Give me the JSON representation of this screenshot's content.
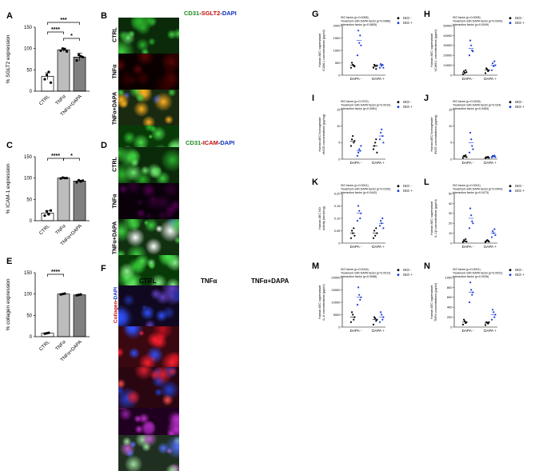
{
  "colors": {
    "ctrl_bar": "#ffffff",
    "tnf_bar": "#bdbdbd",
    "dapa_bar": "#808080",
    "iso_minus": "#000000",
    "iso_plus": "#1f3fd6",
    "green": "#1e8a1e",
    "red": "#c01010",
    "magenta": "#a020b0",
    "blue": "#1030c0"
  },
  "bar_panels": [
    {
      "id": "A",
      "ylabel": "% SGLT2 expression",
      "yticks": [
        "0",
        "50",
        "100",
        "150"
      ],
      "ylim": [
        0,
        150
      ],
      "categories": [
        "CTRL",
        "TNFα",
        "TNFα+DAPA"
      ],
      "values": [
        35,
        97,
        80
      ],
      "errors": [
        8,
        4,
        9
      ],
      "points": [
        [
          28,
          38,
          45,
          20
        ],
        [
          95,
          100,
          98,
          93
        ],
        [
          72,
          85,
          82,
          80
        ]
      ],
      "sig": [
        "***",
        "****",
        "*"
      ]
    },
    {
      "id": "C",
      "ylabel": "% ICAM-1 expression",
      "yticks": [
        "0",
        "50",
        "100",
        "150"
      ],
      "ylim": [
        0,
        150
      ],
      "categories": [
        "CTRL",
        "TNFα",
        "TNFα+DAPA"
      ],
      "values": [
        18,
        100,
        93
      ],
      "errors": [
        5,
        1,
        2
      ],
      "points": [
        [
          12,
          22,
          15,
          24
        ],
        [
          99,
          101,
          100,
          100
        ],
        [
          90,
          95,
          92,
          94
        ]
      ],
      "sig": [
        "****",
        "*"
      ]
    },
    {
      "id": "E",
      "ylabel": "% collagen expression",
      "yticks": [
        "0",
        "50",
        "100",
        "150"
      ],
      "ylim": [
        0,
        150
      ],
      "categories": [
        "CTRL",
        "TNFα",
        "TNFα+DAPA"
      ],
      "values": [
        8,
        100,
        98
      ],
      "errors": [
        1,
        1,
        1
      ],
      "points": [
        [
          7,
          8,
          9
        ],
        [
          99,
          100,
          101
        ],
        [
          97,
          98,
          99
        ]
      ],
      "sig": [
        "****"
      ]
    }
  ],
  "micrographs": {
    "B": {
      "id": "B",
      "title_parts": [
        "CD31",
        "-",
        "SGLT2",
        "-",
        "DAPI"
      ],
      "rows": [
        "CTRL",
        "TNFα",
        "TNFα+DAPA"
      ]
    },
    "D": {
      "id": "D",
      "title_parts": [
        "CD31",
        "-",
        "ICAM",
        "-",
        "DAPI"
      ],
      "rows": [
        "CTRL",
        "TNFα",
        "TNFα+DAPA"
      ]
    },
    "F": {
      "id": "F",
      "ylabel_parts": [
        "Collagen",
        "-",
        "DAPI"
      ],
      "columns": [
        "CTRL",
        "TNFα",
        "TNFα+DAPA"
      ]
    }
  },
  "scatter_panels": [
    {
      "id": "G",
      "ylabel": "Human AEC supernatant ICAM-1 concentrations (pg/ml)",
      "stats": [
        "ISO factor (p=0.0058)",
        "Treatment with DAPA factor (p=0.0486)",
        "Interaction factor (p=0.0805)"
      ],
      "yticks": [
        "0",
        "500",
        "1000",
        "1500",
        "2000"
      ],
      "ylim": [
        0,
        2000
      ],
      "groups": [
        "DAPA -",
        "DAPA +"
      ],
      "legend": [
        "ISO -",
        "ISO +"
      ],
      "means": [
        [
          400,
          1400
        ],
        [
          350,
          400
        ]
      ],
      "points": [
        [
          [
            300,
            500,
            420,
            380,
            350
          ],
          [
            800,
            1800,
            1300,
            1600,
            1200
          ]
        ],
        [
          [
            300,
            420,
            380,
            250,
            390
          ],
          [
            300,
            450,
            380,
            420,
            300
          ]
        ]
      ]
    },
    {
      "id": "H",
      "ylabel": "Human AEC supernatant VCAM-1 concentrations (pg/ml)",
      "stats": [
        "ISO factor (p=0.0005)",
        "Treatment with DAPA factor (p=0.0429)",
        "Interaction factor (p=0.0049)"
      ],
      "yticks": [
        "0",
        "10000",
        "20000",
        "30000",
        "40000",
        "50000"
      ],
      "ylim": [
        0,
        50000
      ],
      "groups": [
        "DAPA -",
        "DAPA +"
      ],
      "legend": [
        "ISO -",
        "ISO +"
      ],
      "means": [
        [
          3000,
          27000
        ],
        [
          5000,
          10000
        ]
      ],
      "points": [
        [
          [
            1000,
            4000,
            2000,
            5000,
            3000
          ],
          [
            20000,
            35000,
            30000,
            25000,
            24000
          ]
        ],
        [
          [
            2000,
            7000,
            6000,
            4000,
            5000
          ],
          [
            5000,
            12000,
            9000,
            14000,
            10000
          ]
        ]
      ]
    },
    {
      "id": "I",
      "ylabel": "Human AEC homogenate eNOS concentrations (pg/mg)",
      "stats": [
        "ISO factor (p=0.0702)",
        "Treatment with DAPA factor (p=0.0010)",
        "Interaction factor (p=0.0081)"
      ],
      "yticks": [
        "0",
        "5",
        "10",
        "15"
      ],
      "ylim": [
        0,
        15
      ],
      "groups": [
        "DAPA -",
        "DAPA +"
      ],
      "legend": [
        "ISO -",
        "ISO +"
      ],
      "means": [
        [
          5.5,
          2.5
        ],
        [
          4,
          7
        ]
      ],
      "points": [
        [
          [
            4,
            6,
            7,
            5,
            5.5
          ],
          [
            1,
            2,
            3,
            2.5,
            4
          ]
        ],
        [
          [
            3,
            4,
            5,
            6,
            2
          ],
          [
            6,
            8,
            9,
            7,
            5
          ]
        ]
      ]
    },
    {
      "id": "J",
      "ylabel": "Human AEC homogenate iNOS concentrations (pg/mg)",
      "stats": [
        "ISO factor (p=0.0228)",
        "Treatment with DAPA factor (p=0.034)",
        "Interaction factor (p=0.0483)"
      ],
      "yticks": [
        "0",
        "5",
        "10",
        "15"
      ],
      "ylim": [
        0,
        15
      ],
      "groups": [
        "DAPA -",
        "DAPA +"
      ],
      "legend": [
        "ISO -",
        "ISO +"
      ],
      "means": [
        [
          0.8,
          5
        ],
        [
          0.5,
          0.8
        ]
      ],
      "points": [
        [
          [
            0.4,
            1,
            0.8,
            1.2,
            0.6
          ],
          [
            2,
            8,
            6,
            4,
            3
          ]
        ],
        [
          [
            0.3,
            0.6,
            0.5,
            0.7,
            0.4
          ],
          [
            0.5,
            1,
            0.8,
            1.1,
            0.6
          ]
        ]
      ]
    },
    {
      "id": "K",
      "ylabel": "Human AEC NO activity (nmol/mg)",
      "stats": [
        "ISO factor (p=0.0001)",
        "Treatment with DAPA factor (p=0.0109)",
        "Interaction factor (p=0.0442)"
      ],
      "yticks": [
        "0",
        "0.05",
        "0.10",
        "0.15",
        "0.20"
      ],
      "ylim": [
        0,
        0.2
      ],
      "groups": [
        "DAPA -",
        "DAPA +"
      ],
      "legend": [
        "ISO -",
        "ISO +"
      ],
      "means": [
        [
          0.04,
          0.12
        ],
        [
          0.04,
          0.08
        ]
      ],
      "points": [
        [
          [
            0.02,
            0.05,
            0.04,
            0.06,
            0.03
          ],
          [
            0.09,
            0.15,
            0.13,
            0.1,
            0.12
          ]
        ],
        [
          [
            0.02,
            0.05,
            0.03,
            0.06,
            0.04
          ],
          [
            0.07,
            0.09,
            0.08,
            0.1,
            0.06
          ]
        ]
      ]
    },
    {
      "id": "L",
      "ylabel": "Human AEC supernatant IL-1β concentrations (pg/ml)",
      "stats": [
        "ISO factor (p=0.0001)",
        "Treatment with DAPA factor (p=0.0404)",
        "Interaction factor (p=0.0473)"
      ],
      "yticks": [
        "0",
        "10",
        "20",
        "30",
        "40",
        "50"
      ],
      "ylim": [
        0,
        50
      ],
      "groups": [
        "DAPA -",
        "DAPA +"
      ],
      "legend": [
        "ISO -",
        "ISO +"
      ],
      "means": [
        [
          2,
          25
        ],
        [
          2,
          10
        ]
      ],
      "points": [
        [
          [
            1,
            3,
            2,
            4,
            1.5
          ],
          [
            15,
            35,
            28,
            22,
            20
          ]
        ],
        [
          [
            1,
            2,
            3,
            2.5,
            1.5
          ],
          [
            6,
            12,
            10,
            14,
            8
          ]
        ]
      ]
    },
    {
      "id": "M",
      "ylabel": "Human AEC supernatant IL-6 concentrations (pg/ml)",
      "stats": [
        "ISO factor (p=0.0016)",
        "Treatment with DAPA factor (p=0.0012)",
        "Interaction factor (p=0.0088)"
      ],
      "yticks": [
        "0",
        "5000",
        "10000",
        "15000",
        "20000"
      ],
      "ylim": [
        0,
        20000
      ],
      "groups": [
        "DAPA -",
        "DAPA +"
      ],
      "legend": [
        "ISO -",
        "ISO +"
      ],
      "means": [
        [
          4000,
          12000
        ],
        [
          3000,
          4000
        ]
      ],
      "points": [
        [
          [
            2000,
            6000,
            5000,
            3000,
            4000
          ],
          [
            9000,
            16000,
            13000,
            11000,
            12000
          ]
        ],
        [
          [
            1000,
            4000,
            3500,
            2500,
            3000
          ],
          [
            2000,
            6000,
            5000,
            3000,
            4000
          ]
        ]
      ]
    },
    {
      "id": "N",
      "ylabel": "Human AEC supernatant TNFα concentrations (pg/ml)",
      "stats": [
        "ISO factor (p<0.0001)",
        "Treatment with DAPA factor (p=0.0022)",
        "Interaction factor (p=0.0026)"
      ],
      "yticks": [
        "0",
        "200",
        "400",
        "600",
        "800",
        "1000"
      ],
      "ylim": [
        0,
        1000
      ],
      "groups": [
        "DAPA -",
        "DAPA +"
      ],
      "legend": [
        "ISO -",
        "ISO +"
      ],
      "means": [
        [
          100,
          700
        ],
        [
          80,
          250
        ]
      ],
      "points": [
        [
          [
            50,
            150,
            120,
            80,
            100
          ],
          [
            500,
            900,
            750,
            650,
            700
          ]
        ],
        [
          [
            40,
            100,
            90,
            70,
            100
          ],
          [
            150,
            350,
            300,
            200,
            250
          ]
        ]
      ]
    }
  ]
}
